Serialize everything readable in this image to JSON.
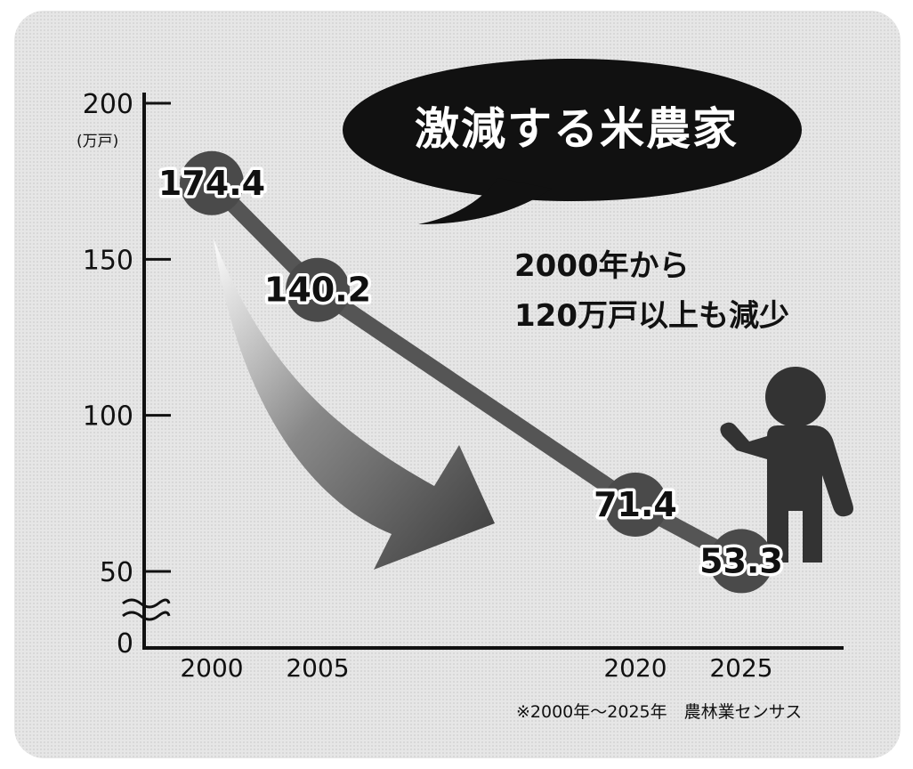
{
  "chart_data": {
    "type": "line",
    "title": "激減する米農家",
    "annotation_lines": [
      "2000年から",
      "120万戸以上も減少"
    ],
    "y_unit": "(万戸)",
    "y_ticks": [
      0,
      50,
      100,
      150,
      200
    ],
    "y_tick_labels": [
      "0",
      "50",
      "100",
      "150",
      "200"
    ],
    "ylim": [
      0,
      200
    ],
    "axis_break": true,
    "x": [
      2000,
      2005,
      2020,
      2025
    ],
    "x_tick_labels": [
      "2000",
      "2005",
      "2020",
      "2025"
    ],
    "series": [
      {
        "values": [
          174.4,
          140.2,
          71.4,
          53.3
        ],
        "labels": [
          "174.4",
          "140.2",
          "71.4",
          "53.3"
        ]
      }
    ],
    "source": "※2000年～2025年　農林業センサス",
    "colors": {
      "background": "#e8e8e8",
      "line": "#555555",
      "marker": "#4a4a4a",
      "bubble": "#111111",
      "figure": "#333333"
    },
    "icons": [
      "down-arrow-icon",
      "person-icon"
    ]
  }
}
